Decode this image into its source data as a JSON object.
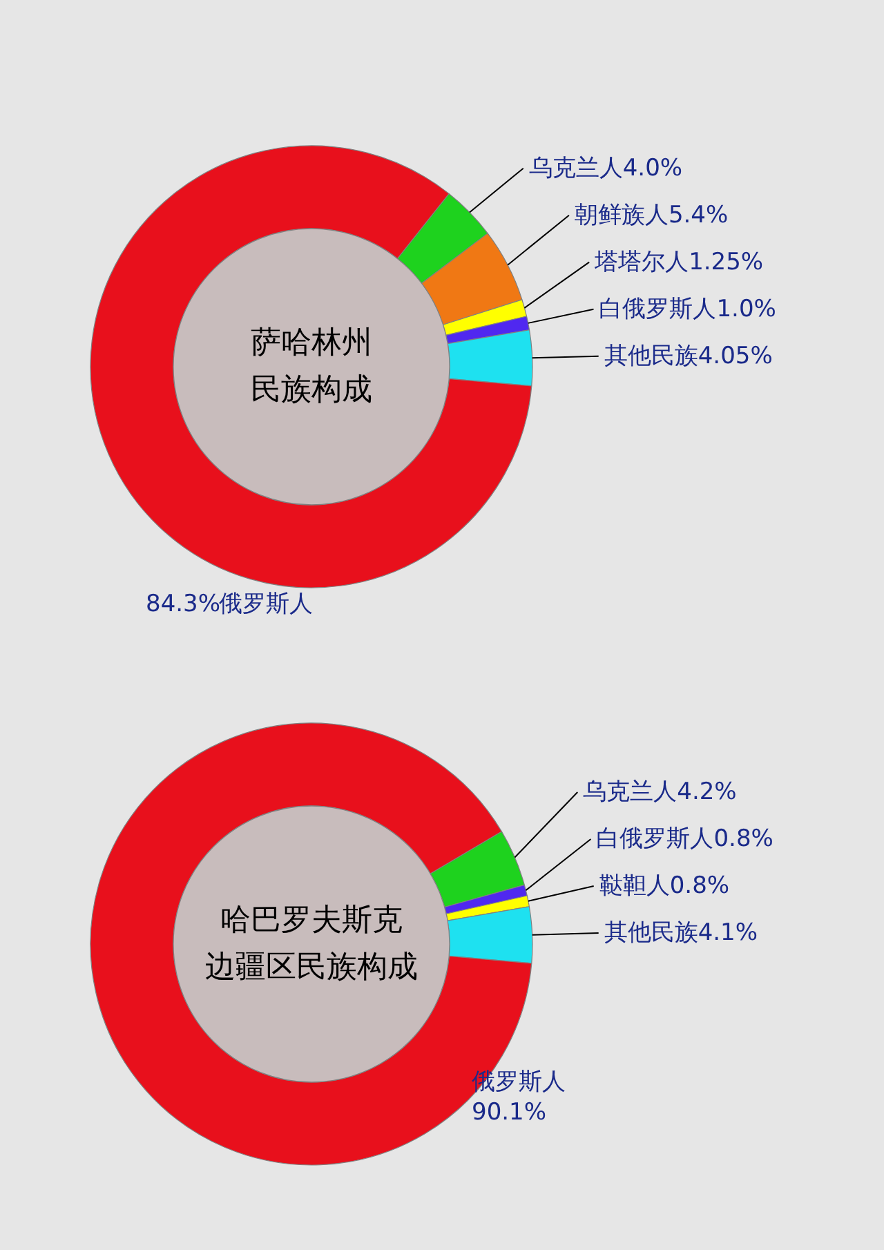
{
  "chart_data": [
    {
      "type": "donut",
      "title": "萨哈林州民族构成",
      "categories": [
        "乌克兰人",
        "朝鲜族人",
        "塔塔尔人",
        "白俄罗斯人",
        "其他民族",
        "俄罗斯人"
      ],
      "values": [
        4.0,
        5.4,
        1.25,
        1.0,
        4.05,
        84.3
      ],
      "colors": [
        "#1ed21e",
        "#f07814",
        "#ffff00",
        "#5028f0",
        "#1ee1f0",
        "#e8101c"
      ],
      "value_labels": [
        "4.0%",
        "5.4%",
        "1.25%",
        "1.0%",
        "4.05%",
        "84.3%"
      ]
    },
    {
      "type": "donut",
      "title": "哈巴罗夫斯克边疆区民族构成",
      "categories": [
        "乌克兰人",
        "白俄罗斯人",
        "鞑靼人",
        "其他民族",
        "俄罗斯人"
      ],
      "values": [
        4.2,
        0.8,
        0.8,
        4.1,
        90.1
      ],
      "colors": [
        "#1ed21e",
        "#5028f0",
        "#ffff00",
        "#1ee1f0",
        "#e8101c"
      ],
      "value_labels": [
        "4.2%",
        "0.8%",
        "0.8%",
        "4.1%",
        "90.1%"
      ]
    }
  ]
}
